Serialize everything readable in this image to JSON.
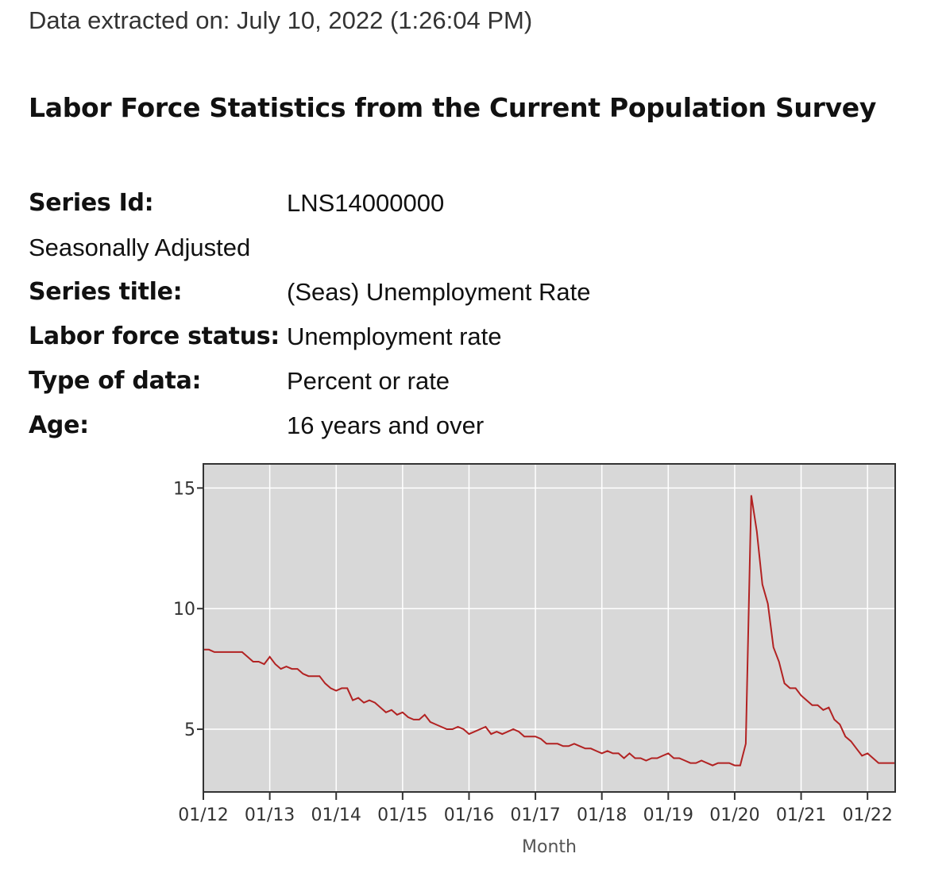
{
  "header": {
    "extracted": "Data extracted on: July 10, 2022 (1:26:04 PM)",
    "survey_title": "Labor Force Statistics from the Current Population Survey"
  },
  "series_info": {
    "series_id_label": "Series Id:",
    "series_id_value": "LNS14000000",
    "seasonal": "Seasonally Adjusted",
    "series_title_label": "Series title:",
    "series_title_value": "(Seas) Unemployment Rate",
    "labor_force_label": "Labor force status:",
    "labor_force_value": "Unemployment rate",
    "type_label": "Type of data:",
    "type_value": "Percent or rate",
    "age_label": "Age:",
    "age_value": "16 years and over"
  },
  "chart_data": {
    "type": "line",
    "title": "",
    "xlabel": "Month",
    "ylabel": "",
    "x_tick_labels": [
      "01/12",
      "01/13",
      "01/14",
      "01/15",
      "01/16",
      "01/17",
      "01/18",
      "01/19",
      "01/20",
      "01/21",
      "01/22"
    ],
    "y_ticks": [
      5,
      10,
      15
    ],
    "ylim": [
      2.4,
      16.0
    ],
    "x_start": "2012-01",
    "x_end": "2022-06",
    "grid": true,
    "colors": {
      "line": "#b22222",
      "plot_bg": "#d8d8d8",
      "grid": "#ffffff"
    },
    "series": [
      {
        "values": [
          8.3,
          8.3,
          8.2,
          8.2,
          8.2,
          8.2,
          8.2,
          8.2,
          8.0,
          7.8,
          7.8,
          7.7,
          8.0,
          7.7,
          7.5,
          7.6,
          7.5,
          7.5,
          7.3,
          7.2,
          7.2,
          7.2,
          6.9,
          6.7,
          6.6,
          6.7,
          6.7,
          6.2,
          6.3,
          6.1,
          6.2,
          6.1,
          5.9,
          5.7,
          5.8,
          5.6,
          5.7,
          5.5,
          5.4,
          5.4,
          5.6,
          5.3,
          5.2,
          5.1,
          5.0,
          5.0,
          5.1,
          5.0,
          4.8,
          4.9,
          5.0,
          5.1,
          4.8,
          4.9,
          4.8,
          4.9,
          5.0,
          4.9,
          4.7,
          4.7,
          4.7,
          4.6,
          4.4,
          4.4,
          4.4,
          4.3,
          4.3,
          4.4,
          4.3,
          4.2,
          4.2,
          4.1,
          4.0,
          4.1,
          4.0,
          4.0,
          3.8,
          4.0,
          3.8,
          3.8,
          3.7,
          3.8,
          3.8,
          3.9,
          4.0,
          3.8,
          3.8,
          3.7,
          3.6,
          3.6,
          3.7,
          3.6,
          3.5,
          3.6,
          3.6,
          3.6,
          3.5,
          3.5,
          4.4,
          14.7,
          13.2,
          11.0,
          10.2,
          8.4,
          7.8,
          6.9,
          6.7,
          6.7,
          6.4,
          6.2,
          6.0,
          6.0,
          5.8,
          5.9,
          5.4,
          5.2,
          4.7,
          4.5,
          4.2,
          3.9,
          4.0,
          3.8,
          3.6,
          3.6,
          3.6,
          3.6
        ]
      }
    ]
  }
}
